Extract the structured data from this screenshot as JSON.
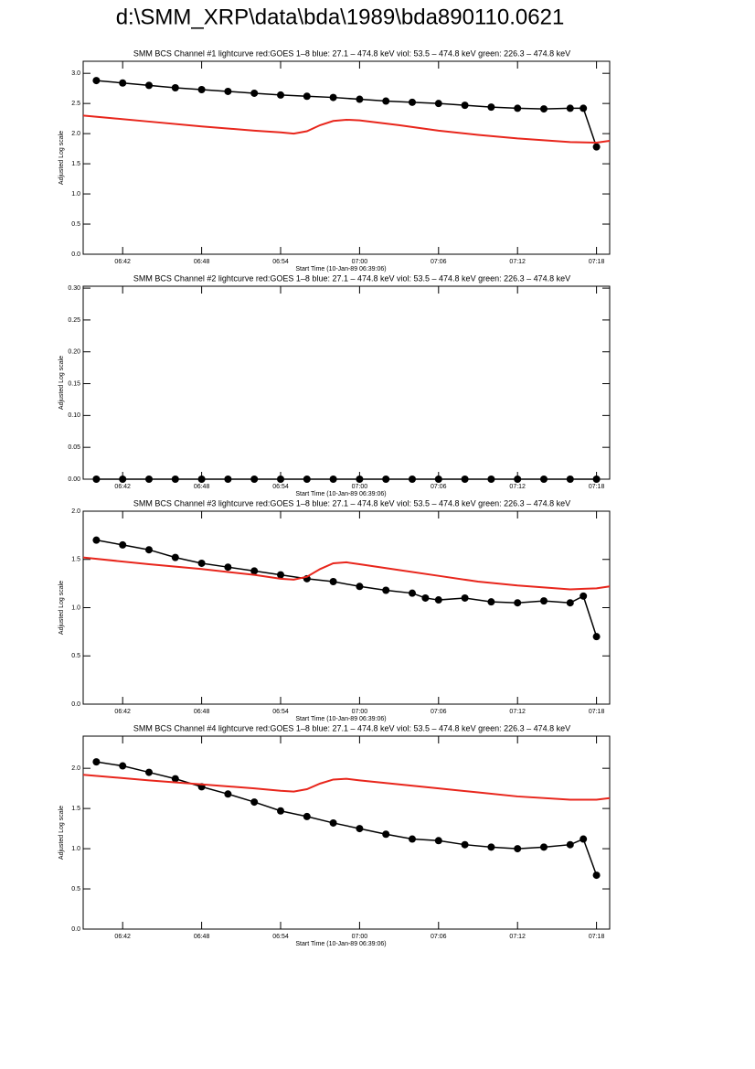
{
  "title": "d:\\SMM_XRP\\data\\bda\\1989\\bda890110.0621",
  "chart_data": [
    {
      "type": "line",
      "title": "SMM BCS Channel #1 lightcurve  red:GOES 1–8  blue: 27.1 – 474.8 keV  viol: 53.5 – 474.8 keV  green: 226.3 – 474.8 keV",
      "x_label": "Start Time (10-Jan-89 06:39:06)",
      "y_label": "Adjusted Log scale",
      "xlim": [
        "06:39",
        "07:19"
      ],
      "xticks": [
        "06:42",
        "06:48",
        "06:54",
        "07:00",
        "07:06",
        "07:12",
        "07:18"
      ],
      "ylim": [
        0,
        3.2
      ],
      "yticks": [
        {
          "value": 0,
          "label": "0.0"
        },
        0.5,
        {
          "value": 1,
          "label": "1.0"
        },
        1.5,
        {
          "value": 2,
          "label": "2.0"
        },
        2.5,
        {
          "value": 3,
          "label": "3.0"
        }
      ],
      "series": [
        {
          "color": "#000000",
          "markers": true,
          "x": [
            "06:40",
            "06:42",
            "06:44",
            "06:46",
            "06:48",
            "06:50",
            "06:52",
            "06:54",
            "06:56",
            "06:58",
            "07:00",
            "07:02",
            "07:04",
            "07:06",
            "07:08",
            "07:10",
            "07:12",
            "07:14",
            "07:16",
            "07:17",
            "07:18"
          ],
          "values": [
            2.88,
            2.84,
            2.8,
            2.76,
            2.73,
            2.7,
            2.67,
            2.64,
            2.62,
            2.6,
            2.57,
            2.54,
            2.52,
            2.5,
            2.47,
            2.44,
            2.42,
            2.41,
            2.42,
            2.42,
            1.78
          ]
        },
        {
          "color": "#e8261c",
          "markers": false,
          "x": [
            "06:39",
            "06:44",
            "06:48",
            "06:52",
            "06:54",
            "06:55",
            "06:56",
            "06:57",
            "06:58",
            "06:59",
            "07:00",
            "07:03",
            "07:06",
            "07:09",
            "07:12",
            "07:16",
            "07:18",
            "07:19"
          ],
          "values": [
            2.3,
            2.2,
            2.12,
            2.05,
            2.02,
            2.0,
            2.04,
            2.14,
            2.21,
            2.23,
            2.22,
            2.14,
            2.05,
            1.98,
            1.92,
            1.86,
            1.85,
            1.88
          ]
        }
      ]
    },
    {
      "type": "line",
      "title": "SMM BCS Channel #2 lightcurve  red:GOES 1–8  blue: 27.1 – 474.8 keV  viol: 53.5 – 474.8 keV  green: 226.3 – 474.8 keV",
      "x_label": "Start Time (10-Jan-89 06:39:06)",
      "y_label": "Adjusted Log scale",
      "xlim": [
        "06:39",
        "07:19"
      ],
      "xticks": [
        "06:42",
        "06:48",
        "06:54",
        "07:00",
        "07:06",
        "07:12",
        "07:18"
      ],
      "ylim": [
        0,
        0.303
      ],
      "yticks": [
        {
          "value": 0,
          "label": "0.00"
        },
        0.05,
        {
          "value": 0.1,
          "label": "0.10"
        },
        0.15,
        {
          "value": 0.2,
          "label": "0.20"
        },
        0.25,
        {
          "value": 0.3,
          "label": "0.30"
        }
      ],
      "series": [
        {
          "color": "#000000",
          "markers": true,
          "x": [
            "06:40",
            "06:42",
            "06:44",
            "06:46",
            "06:48",
            "06:50",
            "06:52",
            "06:54",
            "06:56",
            "06:58",
            "07:00",
            "07:02",
            "07:04",
            "07:06",
            "07:08",
            "07:10",
            "07:12",
            "07:14",
            "07:16",
            "07:18"
          ],
          "values": [
            0,
            0,
            0,
            0,
            0,
            0,
            0,
            0,
            0,
            0,
            0,
            0,
            0,
            0,
            0,
            0,
            0,
            0,
            0,
            0
          ]
        }
      ]
    },
    {
      "type": "line",
      "title": "SMM BCS Channel #3 lightcurve  red:GOES 1–8  blue: 27.1 – 474.8 keV  viol: 53.5 – 474.8 keV  green: 226.3 – 474.8 keV",
      "x_label": "Start Time (10-Jan-89 06:39:06)",
      "y_label": "Adjusted Log scale",
      "xlim": [
        "06:39",
        "07:19"
      ],
      "xticks": [
        "06:42",
        "06:48",
        "06:54",
        "07:00",
        "07:06",
        "07:12",
        "07:18"
      ],
      "ylim": [
        0,
        2.0
      ],
      "yticks": [
        {
          "value": 0,
          "label": "0.0"
        },
        0.5,
        {
          "value": 1,
          "label": "1.0"
        },
        1.5,
        {
          "value": 2,
          "label": "2.0"
        }
      ],
      "series": [
        {
          "color": "#000000",
          "markers": true,
          "x": [
            "06:40",
            "06:42",
            "06:44",
            "06:46",
            "06:48",
            "06:50",
            "06:52",
            "06:54",
            "06:56",
            "06:58",
            "07:00",
            "07:02",
            "07:04",
            "07:05",
            "07:06",
            "07:08",
            "07:10",
            "07:12",
            "07:14",
            "07:16",
            "07:17",
            "07:18"
          ],
          "values": [
            1.7,
            1.65,
            1.6,
            1.52,
            1.46,
            1.42,
            1.38,
            1.34,
            1.3,
            1.27,
            1.22,
            1.18,
            1.15,
            1.1,
            1.08,
            1.1,
            1.06,
            1.05,
            1.07,
            1.05,
            1.12,
            0.7
          ]
        },
        {
          "color": "#e8261c",
          "markers": false,
          "x": [
            "06:39",
            "06:44",
            "06:48",
            "06:52",
            "06:54",
            "06:55",
            "06:56",
            "06:57",
            "06:58",
            "06:59",
            "07:00",
            "07:03",
            "07:06",
            "07:09",
            "07:12",
            "07:16",
            "07:18",
            "07:19"
          ],
          "values": [
            1.52,
            1.45,
            1.4,
            1.34,
            1.3,
            1.29,
            1.32,
            1.4,
            1.46,
            1.47,
            1.45,
            1.39,
            1.33,
            1.27,
            1.23,
            1.19,
            1.2,
            1.22
          ]
        }
      ]
    },
    {
      "type": "line",
      "title": "SMM BCS Channel #4 lightcurve  red:GOES 1–8  blue: 27.1 – 474.8 keV  viol: 53.5 – 474.8 keV  green: 226.3 – 474.8 keV",
      "x_label": "Start Time (10-Jan-89 06:39:06)",
      "y_label": "Adjusted Log scale",
      "xlim": [
        "06:39",
        "07:19"
      ],
      "xticks": [
        "06:42",
        "06:48",
        "06:54",
        "07:00",
        "07:06",
        "07:12",
        "07:18"
      ],
      "ylim": [
        0,
        2.4
      ],
      "yticks": [
        {
          "value": 0,
          "label": "0.0"
        },
        0.5,
        {
          "value": 1,
          "label": "1.0"
        },
        1.5,
        {
          "value": 2,
          "label": "2.0"
        }
      ],
      "series": [
        {
          "color": "#000000",
          "markers": true,
          "x": [
            "06:40",
            "06:42",
            "06:44",
            "06:46",
            "06:48",
            "06:50",
            "06:52",
            "06:54",
            "06:56",
            "06:58",
            "07:00",
            "07:02",
            "07:04",
            "07:06",
            "07:08",
            "07:10",
            "07:12",
            "07:14",
            "07:16",
            "07:17",
            "07:18"
          ],
          "values": [
            2.08,
            2.03,
            1.95,
            1.87,
            1.77,
            1.68,
            1.58,
            1.47,
            1.4,
            1.32,
            1.25,
            1.18,
            1.12,
            1.1,
            1.05,
            1.02,
            1.0,
            1.02,
            1.05,
            1.12,
            0.67
          ]
        },
        {
          "color": "#e8261c",
          "markers": false,
          "x": [
            "06:39",
            "06:44",
            "06:48",
            "06:52",
            "06:54",
            "06:55",
            "06:56",
            "06:57",
            "06:58",
            "06:59",
            "07:00",
            "07:03",
            "07:06",
            "07:09",
            "07:12",
            "07:16",
            "07:18",
            "07:19"
          ],
          "values": [
            1.92,
            1.85,
            1.8,
            1.75,
            1.72,
            1.71,
            1.74,
            1.81,
            1.86,
            1.87,
            1.85,
            1.8,
            1.75,
            1.7,
            1.65,
            1.61,
            1.61,
            1.63
          ]
        }
      ]
    }
  ]
}
